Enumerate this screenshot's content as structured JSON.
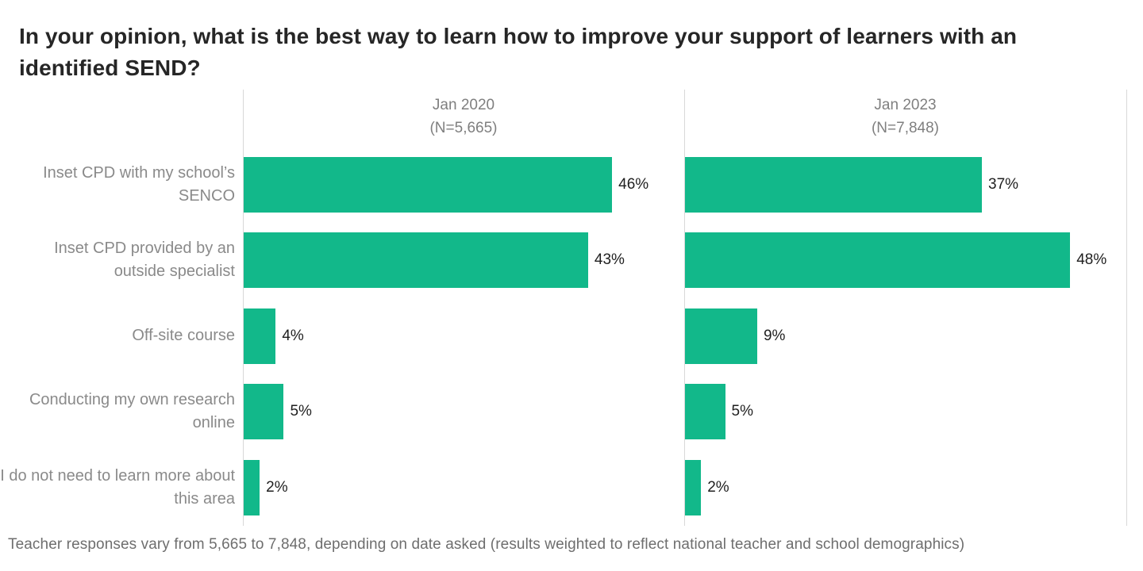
{
  "header": {
    "title": "In your opinion, what is the best way to learn how to improve your support of learners with an identified SEND?"
  },
  "footer": {
    "note": "Teacher responses vary from 5,665 to 7,848, depending on date asked (results weighted to reflect national teacher and school demographics)"
  },
  "chart_data": {
    "type": "bar",
    "orientation": "horizontal",
    "title": "In your opinion, what is the best way to learn how to improve your support of learners with an identified SEND?",
    "categories": [
      "Inset CPD with my school’s SENCO",
      "Inset CPD provided by an outside specialist",
      "Off-site course",
      "Conducting my own research online",
      "I do not need to learn more about this area"
    ],
    "series": [
      {
        "name": "Jan 2020",
        "subtitle": "(N=5,665)",
        "values": [
          46,
          43,
          4,
          5,
          2
        ],
        "value_labels": [
          "46%",
          "43%",
          "4%",
          "5%",
          "2%"
        ]
      },
      {
        "name": "Jan 2023",
        "subtitle": "(N=7,848)",
        "values": [
          37,
          48,
          9,
          5,
          2
        ],
        "value_labels": [
          "37%",
          "48%",
          "9%",
          "5%",
          "2%"
        ]
      }
    ],
    "xlabel": "",
    "ylabel": "",
    "xlim": [
      0,
      55
    ],
    "grid": false,
    "legend_position": "none",
    "bar_color": "#12b88a",
    "axis_color": "#d8d8d8",
    "value_label_color": "#1f1f1f",
    "category_label_color": "#8a8a8a"
  }
}
